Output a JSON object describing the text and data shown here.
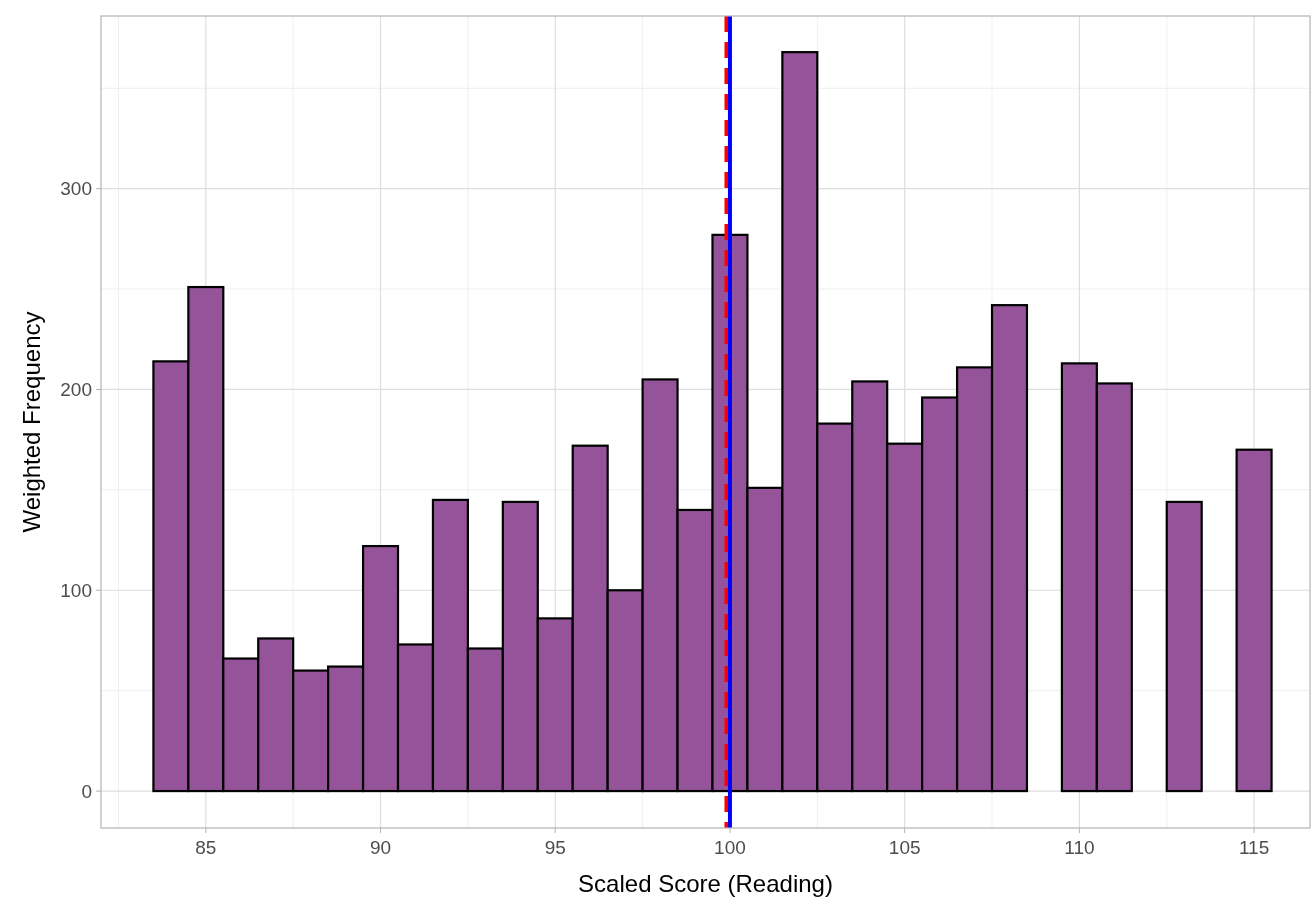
{
  "chart_data": {
    "type": "histogram",
    "xlabel": "Scaled Score (Reading)",
    "ylabel": "Weighted Frequency",
    "bins": [
      83.5,
      84.5,
      85.5,
      86.5,
      87.5,
      88.5,
      89.5,
      90.5,
      91.5,
      92.5,
      93.5,
      94.5,
      95.5,
      96.5,
      97.5,
      98.5,
      99.5,
      100.5,
      101.5,
      102.5,
      103.5,
      104.5,
      105.5,
      106.5,
      107.5,
      108.5,
      109.5,
      110.5,
      111.5,
      112.5,
      113.5,
      114.5,
      115.5
    ],
    "values": [
      214,
      251,
      66,
      76,
      60,
      62,
      122,
      73,
      145,
      71,
      144,
      86,
      172,
      100,
      205,
      140,
      277,
      151,
      368,
      183,
      204,
      173,
      196,
      211,
      242,
      0,
      213,
      203,
      0,
      144,
      0,
      170
    ],
    "color": "#955499",
    "xlim": [
      82,
      116.6
    ],
    "xticks": [
      85,
      90,
      95,
      100,
      105,
      110,
      115
    ],
    "ylim": [
      -18.4,
      386
    ],
    "yticks": [
      0,
      100,
      200,
      300
    ],
    "grid": true,
    "ref_lines": [
      {
        "axis": "x",
        "value": 99.9,
        "color": "#ff0000",
        "line_style": "dashed"
      },
      {
        "axis": "x",
        "value": 100,
        "color": "#0000ff",
        "line_style": "solid"
      }
    ]
  }
}
